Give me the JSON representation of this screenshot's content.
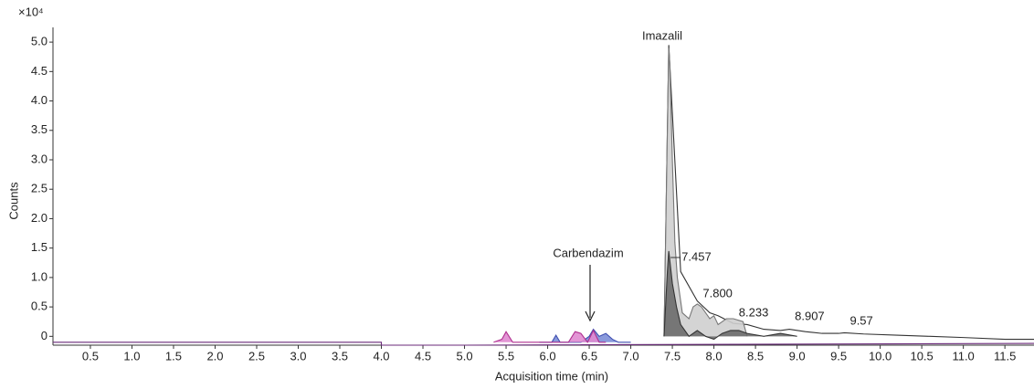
{
  "chart_data": {
    "type": "area",
    "y_multiplier": "×10⁴",
    "ylabel": "Counts",
    "xlabel": "Acquisition time (min)",
    "annotations": [
      "Imazalil",
      "Carbendazim"
    ],
    "peak_labels": [
      7.457,
      {
        "value": 7.8,
        "label": "7.800"
      },
      8.233,
      8.907,
      9.57
    ],
    "xlim": [
      0.05,
      11.85
    ],
    "ylim": [
      -0.15,
      5.25
    ],
    "xticks": [
      0.5,
      {
        "value": 1,
        "label": "1.0"
      },
      1.5,
      {
        "value": 2,
        "label": "2.0"
      },
      2.5,
      {
        "value": 3,
        "label": "3.0"
      },
      3.5,
      {
        "value": 4,
        "label": "4.0"
      },
      4.5,
      {
        "value": 5,
        "label": "5.0"
      },
      5.5,
      {
        "value": 6,
        "label": "6.0"
      },
      6.5,
      {
        "value": 7,
        "label": "7.0"
      },
      7.5,
      {
        "value": 8,
        "label": "8.0"
      },
      8.5,
      {
        "value": 9,
        "label": "9.0"
      },
      9.5,
      {
        "value": 10,
        "label": "10.0"
      },
      10.5,
      {
        "value": 11,
        "label": "11.0"
      },
      11.5
    ],
    "yticks": [
      0,
      0.5,
      {
        "value": 1,
        "label": "1.0"
      },
      1.5,
      {
        "value": 2,
        "label": "2.0"
      },
      2.5,
      {
        "value": 3,
        "label": "3.0"
      },
      3.5,
      {
        "value": 4,
        "label": "4.0"
      },
      4.5,
      {
        "value": 5,
        "label": "5.0"
      }
    ],
    "series": [
      {
        "color": "#ffffff",
        "stroke": "#333333",
        "x": [
          7.4,
          7.457,
          7.6,
          7.8,
          7.95,
          8.05,
          8.233,
          8.4,
          8.6,
          8.8,
          8.907,
          9.1,
          9.3,
          9.5,
          9.57,
          9.8,
          10.2,
          10.6,
          11.0,
          11.5,
          11.85
        ],
        "values": [
          0,
          4.95,
          1.1,
          0.6,
          0.4,
          0.35,
          0.22,
          0.2,
          0.12,
          0.1,
          0.12,
          0.08,
          0.05,
          0.05,
          0.06,
          0.04,
          0.02,
          0.0,
          -0.02,
          -0.05,
          -0.05
        ]
      },
      {
        "color": "#cfcfcf",
        "stroke": "#777777",
        "x": [
          7.4,
          7.44,
          7.457,
          7.47,
          7.5,
          7.53,
          7.56,
          7.62,
          7.7,
          7.75,
          7.8,
          7.85,
          7.95,
          8.0,
          8.05,
          8.15,
          8.233,
          8.35,
          8.4
        ],
        "values": [
          0,
          3.5,
          4.9,
          4.6,
          3.0,
          1.6,
          1.0,
          0.4,
          0.3,
          0.5,
          0.55,
          0.5,
          0.3,
          0.35,
          0.2,
          0.3,
          0.3,
          0.25,
          0
        ]
      },
      {
        "color": "#6b6b6b",
        "stroke": "#333333",
        "x": [
          7.4,
          7.44,
          7.457,
          7.5,
          7.55,
          7.6,
          7.7,
          7.8,
          7.9,
          8.0,
          8.1,
          8.2,
          8.3,
          8.4,
          8.6,
          8.8,
          9.0
        ],
        "values": [
          0,
          1.1,
          1.45,
          0.9,
          0.5,
          0.2,
          0,
          0.1,
          0.0,
          -0.05,
          0.05,
          0.1,
          0.1,
          0.05,
          0,
          0.05,
          0
        ]
      },
      {
        "color": "#7d8fd8",
        "stroke": "#3f4fb0",
        "x": [
          5.9,
          6.05,
          6.1,
          6.15,
          6.4,
          6.5,
          6.55,
          6.62,
          6.7,
          6.78,
          6.85,
          7.0
        ],
        "values": [
          -0.1,
          -0.1,
          0.02,
          -0.1,
          -0.1,
          0.0,
          0.12,
          0.0,
          0.05,
          -0.05,
          -0.1,
          -0.1
        ]
      },
      {
        "color": "#e08ad0",
        "stroke": "#b03090",
        "x": [
          5.35,
          5.45,
          5.5,
          5.58,
          6.25,
          6.33,
          6.4,
          6.48,
          6.55,
          6.62,
          6.7
        ],
        "values": [
          -0.1,
          -0.05,
          0.08,
          -0.1,
          -0.1,
          0.08,
          0.05,
          -0.1,
          0.1,
          -0.1,
          -0.1
        ]
      },
      {
        "color": "none",
        "stroke": "#6a2a7a",
        "x": [
          0.05,
          4.0,
          4.0,
          5.0,
          11.85
        ],
        "values": [
          -0.1,
          -0.1,
          -0.15,
          -0.15,
          -0.12
        ]
      }
    ]
  }
}
